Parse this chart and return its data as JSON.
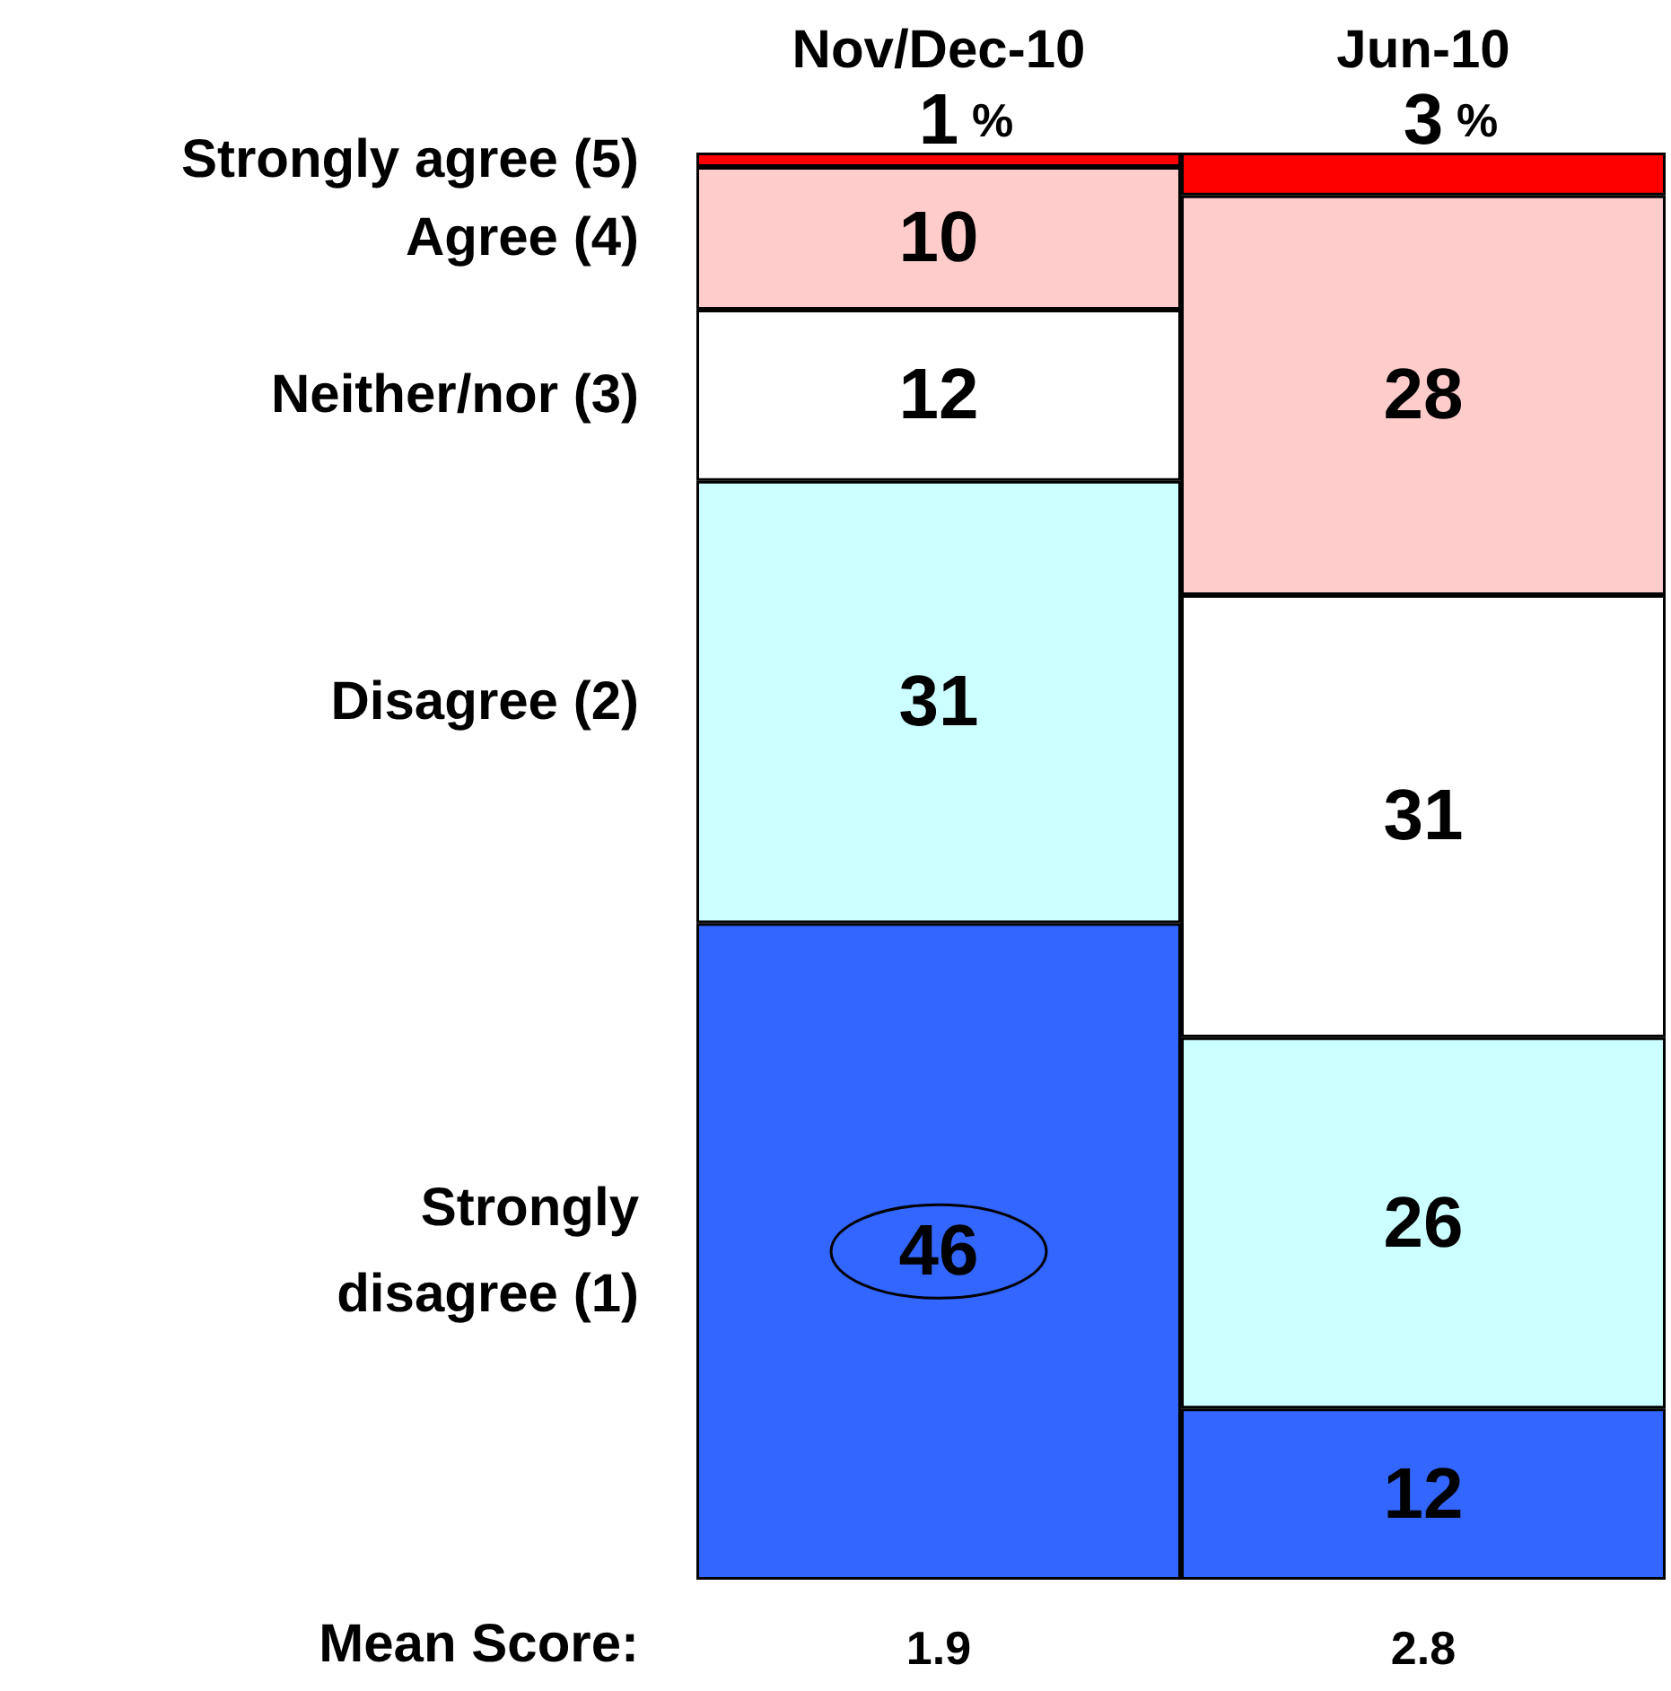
{
  "chart_data": {
    "type": "bar",
    "stacked": true,
    "data_labels": true,
    "legend": false,
    "grid": false,
    "categories": [
      "Nov/Dec-10",
      "Jun-10"
    ],
    "series": [
      {
        "name": "Strongly disagree (1)",
        "color": "#3366ff",
        "values": [
          46,
          12
        ]
      },
      {
        "name": "Disagree (2)",
        "color": "#ccffff",
        "values": [
          31,
          26
        ]
      },
      {
        "name": "Neither/nor (3)",
        "color": "#ffffff",
        "values": [
          12,
          31
        ]
      },
      {
        "name": "Agree (4)",
        "color": "#ffcccc",
        "values": [
          10,
          28
        ]
      },
      {
        "name": "Strongly agree (5)",
        "color": "#ff0000",
        "values": [
          1,
          3
        ]
      }
    ],
    "annotations": [
      {
        "text": "%",
        "x": "Nov/Dec-10",
        "y": 100
      },
      {
        "text": "%",
        "x": "Jun-10",
        "y": 100
      },
      "Mean Score:",
      "1.9",
      "2.8"
    ]
  }
}
